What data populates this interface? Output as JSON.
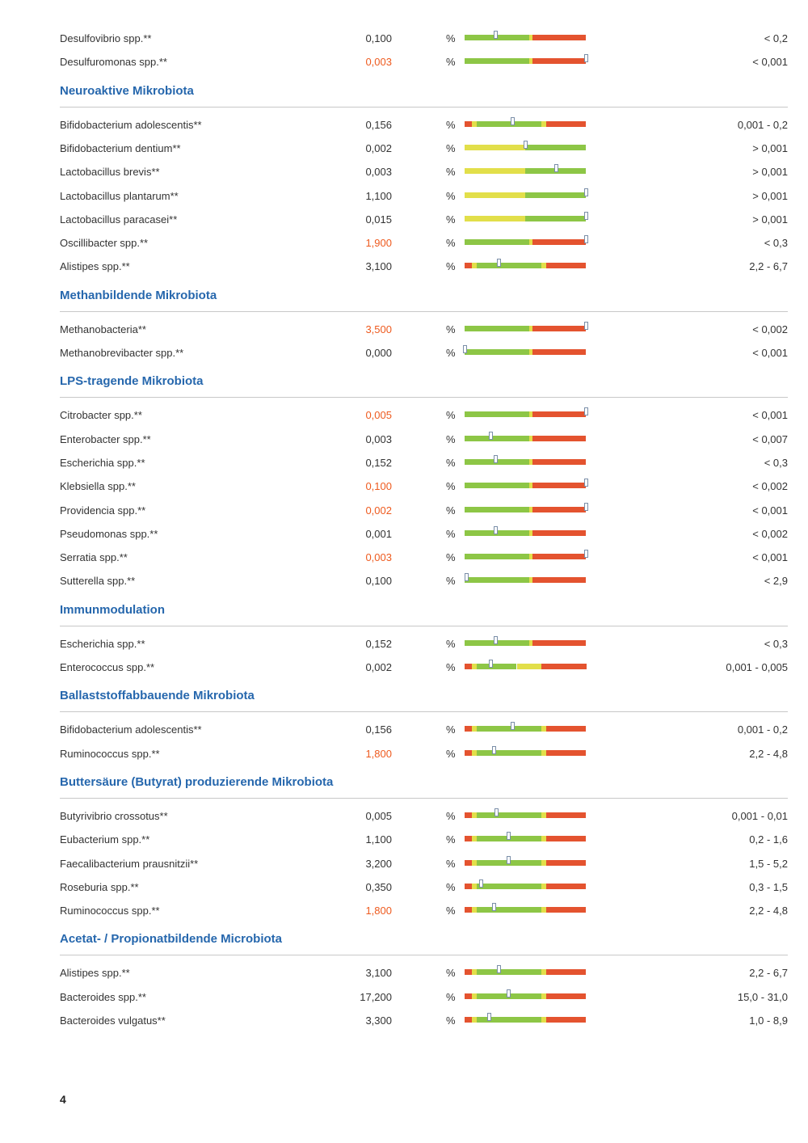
{
  "colors": {
    "section_title": "#2667ad",
    "flagged_value": "#ee5a1e",
    "bar_green": "#8dc646",
    "bar_red": "#e4532f",
    "bar_yellow": "#e2df4a"
  },
  "sections": [
    {
      "title": "",
      "rows": [
        {
          "name": "Desulfovibrio spp.**",
          "value": "0,100",
          "flag": false,
          "unit": "%",
          "ref": "< 0,2",
          "bar_type": "green-red",
          "level": 0.25
        },
        {
          "name": "Desulfuromonas spp.**",
          "value": "0,003",
          "flag": true,
          "unit": "%",
          "ref": "< 0,001",
          "bar_type": "green-red",
          "level": 1.0
        }
      ]
    },
    {
      "title": "Neuroaktive Mikrobiota",
      "rows": [
        {
          "name": "Bifidobacterium adolescentis**",
          "value": "0,156",
          "flag": false,
          "unit": "%",
          "ref": "0,001 - 0,2",
          "bar_type": "red-green-red",
          "level": 0.39
        },
        {
          "name": "Bifidobacterium dentium**",
          "value": "0,002",
          "flag": false,
          "unit": "%",
          "ref": "> 0,001",
          "bar_type": "yellow-green",
          "level": 0.5
        },
        {
          "name": "Lactobacillus brevis**",
          "value": "0,003",
          "flag": false,
          "unit": "%",
          "ref": "> 0,001",
          "bar_type": "yellow-green",
          "level": 0.75
        },
        {
          "name": "Lactobacillus plantarum**",
          "value": "1,100",
          "flag": false,
          "unit": "%",
          "ref": "> 0,001",
          "bar_type": "yellow-green",
          "level": 1.0
        },
        {
          "name": "Lactobacillus paracasei**",
          "value": "0,015",
          "flag": false,
          "unit": "%",
          "ref": "> 0,001",
          "bar_type": "yellow-green",
          "level": 1.0
        },
        {
          "name": "Oscillibacter spp.**",
          "value": "1,900",
          "flag": true,
          "unit": "%",
          "ref": "< 0,3",
          "bar_type": "green-red",
          "level": 1.0
        },
        {
          "name": "Alistipes spp.**",
          "value": "3,100",
          "flag": false,
          "unit": "%",
          "ref": "2,2 - 6,7",
          "bar_type": "red-green-red",
          "level": 0.28
        }
      ]
    },
    {
      "title": "Methanbildende Mikrobiota",
      "rows": [
        {
          "name": "Methanobacteria**",
          "value": "3,500",
          "flag": true,
          "unit": "%",
          "ref": "< 0,002",
          "bar_type": "green-red",
          "level": 1.0
        },
        {
          "name": "Methanobrevibacter spp.**",
          "value": "0,000",
          "flag": false,
          "unit": "%",
          "ref": "< 0,001",
          "bar_type": "green-red",
          "level": 0.0
        }
      ]
    },
    {
      "title": "LPS-tragende Mikrobiota",
      "rows": [
        {
          "name": "Citrobacter spp.**",
          "value": "0,005",
          "flag": true,
          "unit": "%",
          "ref": "< 0,001",
          "bar_type": "green-red",
          "level": 1.0
        },
        {
          "name": "Enterobacter spp.**",
          "value": "0,003",
          "flag": false,
          "unit": "%",
          "ref": "< 0,007",
          "bar_type": "green-red",
          "level": 0.21
        },
        {
          "name": "Escherichia spp.**",
          "value": "0,152",
          "flag": false,
          "unit": "%",
          "ref": "< 0,3",
          "bar_type": "green-red",
          "level": 0.25
        },
        {
          "name": "Klebsiella spp.**",
          "value": "0,100",
          "flag": true,
          "unit": "%",
          "ref": "< 0,002",
          "bar_type": "green-red",
          "level": 1.0
        },
        {
          "name": "Providencia spp.**",
          "value": "0,002",
          "flag": true,
          "unit": "%",
          "ref": "< 0,001",
          "bar_type": "green-red",
          "level": 1.0
        },
        {
          "name": "Pseudomonas spp.**",
          "value": "0,001",
          "flag": false,
          "unit": "%",
          "ref": "< 0,002",
          "bar_type": "green-red",
          "level": 0.25
        },
        {
          "name": "Serratia spp.**",
          "value": "0,003",
          "flag": true,
          "unit": "%",
          "ref": "< 0,001",
          "bar_type": "green-red",
          "level": 1.0
        },
        {
          "name": "Sutterella spp.**",
          "value": "0,100",
          "flag": false,
          "unit": "%",
          "ref": "< 2,9",
          "bar_type": "green-red",
          "level": 0.01
        }
      ]
    },
    {
      "title": "Immunmodulation",
      "rows": [
        {
          "name": "Escherichia spp.**",
          "value": "0,152",
          "flag": false,
          "unit": "%",
          "ref": "< 0,3",
          "bar_type": "green-red",
          "level": 0.25
        },
        {
          "name": "Enterococcus spp.**",
          "value": "0,002",
          "flag": false,
          "unit": "%",
          "ref": "0,001 - 0,005",
          "bar_type": "red-green-yellow-red",
          "level": 0.21
        }
      ]
    },
    {
      "title": "Ballaststoffabbauende Mikrobiota",
      "rows": [
        {
          "name": "Bifidobacterium adolescentis**",
          "value": "0,156",
          "flag": false,
          "unit": "%",
          "ref": "0,001 - 0,2",
          "bar_type": "red-green-red",
          "level": 0.39
        },
        {
          "name": "Ruminococcus spp.**",
          "value": "1,800",
          "flag": true,
          "unit": "%",
          "ref": "2,2 - 4,8",
          "bar_type": "red-green-red",
          "level": 0.24
        }
      ]
    },
    {
      "title": "Buttersäure (Butyrat) produzierende Mikrobiota",
      "rows": [
        {
          "name": "Butyrivibrio crossotus**",
          "value": "0,005",
          "flag": false,
          "unit": "%",
          "ref": "0,001 - 0,01",
          "bar_type": "red-green-red",
          "level": 0.26
        },
        {
          "name": "Eubacterium spp.**",
          "value": "1,100",
          "flag": false,
          "unit": "%",
          "ref": "0,2 - 1,6",
          "bar_type": "red-green-red",
          "level": 0.36
        },
        {
          "name": "Faecalibacterium prausnitzii**",
          "value": "3,200",
          "flag": false,
          "unit": "%",
          "ref": "1,5 - 5,2",
          "bar_type": "red-green-red",
          "level": 0.36
        },
        {
          "name": "Roseburia spp.**",
          "value": "0,350",
          "flag": false,
          "unit": "%",
          "ref": "0,3 - 1,5",
          "bar_type": "red-green-red",
          "level": 0.13
        },
        {
          "name": "Ruminococcus spp.**",
          "value": "1,800",
          "flag": true,
          "unit": "%",
          "ref": "2,2 - 4,8",
          "bar_type": "red-green-red",
          "level": 0.24
        }
      ]
    },
    {
      "title": "Acetat- / Propionatbildende Microbiota",
      "rows": [
        {
          "name": "Alistipes spp.**",
          "value": "3,100",
          "flag": false,
          "unit": "%",
          "ref": "2,2 - 6,7",
          "bar_type": "red-green-red",
          "level": 0.28
        },
        {
          "name": "Bacteroides spp.**",
          "value": "17,200",
          "flag": false,
          "unit": "%",
          "ref": "15,0 - 31,0",
          "bar_type": "red-green-red",
          "level": 0.36
        },
        {
          "name": "Bacteroides vulgatus**",
          "value": "3,300",
          "flag": false,
          "unit": "%",
          "ref": "1,0 - 8,9",
          "bar_type": "red-green-red",
          "level": 0.2
        }
      ]
    }
  ],
  "page_number": "4"
}
